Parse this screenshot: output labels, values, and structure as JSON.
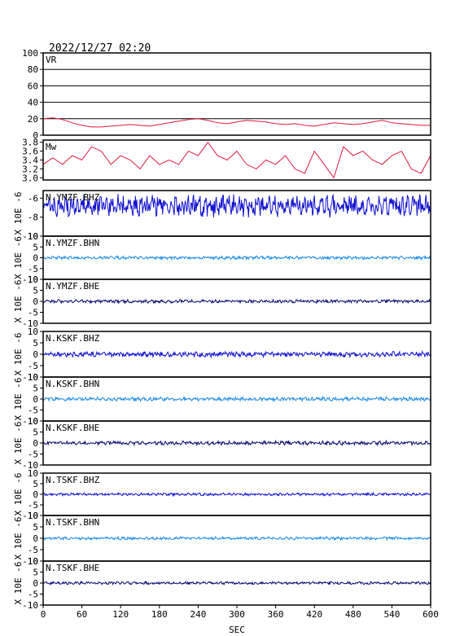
{
  "header": {
    "datetime": "2022/12/27  02:20"
  },
  "colors": {
    "vr": "#e0193c",
    "mw": "#e0193c",
    "bhz": "#1010d0",
    "bhn": "#1e8ce6",
    "bhe": "#0a0a70",
    "frame": "#000000",
    "grid": "#000000"
  },
  "chart_data": [
    {
      "type": "line",
      "name": "vr-panel",
      "label": "VR",
      "xlim": [
        0,
        600
      ],
      "ylim": [
        0,
        100
      ],
      "yticks": [
        "0",
        "20",
        "40",
        "60",
        "80",
        "100"
      ],
      "grid": true,
      "color_key": "vr",
      "x": [
        0,
        15,
        30,
        45,
        60,
        75,
        90,
        105,
        120,
        135,
        150,
        165,
        180,
        195,
        210,
        225,
        240,
        255,
        270,
        285,
        300,
        315,
        330,
        345,
        360,
        375,
        390,
        405,
        420,
        435,
        450,
        465,
        480,
        495,
        510,
        525,
        540,
        555,
        570,
        585,
        600
      ],
      "values": [
        20,
        21,
        19,
        15,
        12,
        10,
        10,
        11,
        12,
        13,
        12,
        11,
        13,
        15,
        17,
        19,
        20,
        18,
        15,
        14,
        16,
        18,
        17,
        16,
        14,
        13,
        14,
        12,
        11,
        13,
        15,
        14,
        13,
        14,
        16,
        18,
        15,
        14,
        13,
        12,
        12
      ]
    },
    {
      "type": "line",
      "name": "mw-panel",
      "label": "Mw",
      "xlim": [
        0,
        600
      ],
      "ylim": [
        2.95,
        3.85
      ],
      "yticks": [
        "3.0",
        "3.2",
        "3.4",
        "3.6",
        "3.8"
      ],
      "grid": false,
      "color_key": "mw",
      "x": [
        0,
        15,
        30,
        45,
        60,
        75,
        90,
        105,
        120,
        135,
        150,
        165,
        180,
        195,
        210,
        225,
        240,
        255,
        270,
        285,
        300,
        315,
        330,
        345,
        360,
        375,
        390,
        405,
        420,
        435,
        450,
        465,
        480,
        495,
        510,
        525,
        540,
        555,
        570,
        585,
        600
      ],
      "values": [
        3.3,
        3.45,
        3.3,
        3.5,
        3.4,
        3.7,
        3.6,
        3.3,
        3.5,
        3.4,
        3.2,
        3.5,
        3.3,
        3.4,
        3.3,
        3.6,
        3.5,
        3.8,
        3.5,
        3.4,
        3.6,
        3.3,
        3.2,
        3.4,
        3.3,
        3.5,
        3.2,
        3.1,
        3.6,
        3.3,
        3.0,
        3.7,
        3.5,
        3.6,
        3.4,
        3.3,
        3.5,
        3.6,
        3.2,
        3.1,
        3.5
      ]
    },
    {
      "type": "line",
      "name": "trace-ymzf-bhz",
      "label": "N.YMZF.BHZ",
      "xlim": [
        0,
        600
      ],
      "ylim": [
        -10,
        -5.2
      ],
      "yticks": [
        "-10",
        "-8",
        "-6"
      ],
      "ylabel": "X 10E -6",
      "color_key": "bhz",
      "baseline": -6.8,
      "amplitude": 0.9
    },
    {
      "type": "line",
      "name": "trace-ymzf-bhn",
      "label": "N.YMZF.BHN",
      "xlim": [
        0,
        600
      ],
      "ylim": [
        -10,
        10
      ],
      "yticks": [
        "-10",
        "-5",
        "0",
        "5",
        "10"
      ],
      "ylabel": "X 10E -6",
      "color_key": "bhn",
      "baseline": 0,
      "amplitude": 0.6
    },
    {
      "type": "line",
      "name": "trace-ymzf-bhe",
      "label": "N.YMZF.BHE",
      "xlim": [
        0,
        600
      ],
      "ylim": [
        -10,
        10
      ],
      "yticks": [
        "-10",
        "-5",
        "0",
        "5",
        "10"
      ],
      "ylabel": "X 10E -6",
      "color_key": "bhe",
      "baseline": 0,
      "amplitude": 0.6
    },
    {
      "type": "line",
      "name": "trace-kskf-bhz",
      "label": "N.KSKF.BHZ",
      "xlim": [
        0,
        600
      ],
      "ylim": [
        -10,
        10
      ],
      "yticks": [
        "-10",
        "-5",
        "0",
        "5",
        "10"
      ],
      "ylabel": "X 10E -6",
      "color_key": "bhz",
      "baseline": 0,
      "amplitude": 0.9
    },
    {
      "type": "line",
      "name": "trace-kskf-bhn",
      "label": "N.KSKF.BHN",
      "xlim": [
        0,
        600
      ],
      "ylim": [
        -10,
        10
      ],
      "yticks": [
        "-10",
        "-5",
        "0",
        "5",
        "10"
      ],
      "ylabel": "X 10E -6",
      "color_key": "bhn",
      "baseline": 0,
      "amplitude": 0.7
    },
    {
      "type": "line",
      "name": "trace-kskf-bhe",
      "label": "N.KSKF.BHE",
      "xlim": [
        0,
        600
      ],
      "ylim": [
        -10,
        10
      ],
      "yticks": [
        "-10",
        "-5",
        "0",
        "5",
        "10"
      ],
      "ylabel": "X 10E -6",
      "color_key": "bhe",
      "baseline": 0,
      "amplitude": 0.7
    },
    {
      "type": "line",
      "name": "trace-tskf-bhz",
      "label": "N.TSKF.BHZ",
      "xlim": [
        0,
        600
      ],
      "ylim": [
        -10,
        10
      ],
      "yticks": [
        "-10",
        "-5",
        "0",
        "5",
        "10"
      ],
      "ylabel": "X 10E -6",
      "color_key": "bhz",
      "baseline": 0,
      "amplitude": 0.5
    },
    {
      "type": "line",
      "name": "trace-tskf-bhn",
      "label": "N.TSKF.BHN",
      "xlim": [
        0,
        600
      ],
      "ylim": [
        -10,
        10
      ],
      "yticks": [
        "-10",
        "-5",
        "0",
        "5",
        "10"
      ],
      "ylabel": "X 10E -6",
      "color_key": "bhn",
      "baseline": 0,
      "amplitude": 0.5
    },
    {
      "type": "line",
      "name": "trace-tskf-bhe",
      "label": "N.TSKF.BHE",
      "xlim": [
        0,
        600
      ],
      "ylim": [
        -10,
        10
      ],
      "yticks": [
        "-10",
        "-5",
        "0",
        "5",
        "10"
      ],
      "ylabel": "X 10E -6",
      "color_key": "bhe",
      "baseline": 0,
      "amplitude": 0.5
    }
  ],
  "x_axis": {
    "label": "SEC",
    "ticks": [
      "0",
      "60",
      "120",
      "180",
      "240",
      "300",
      "360",
      "420",
      "480",
      "540",
      "600"
    ]
  }
}
